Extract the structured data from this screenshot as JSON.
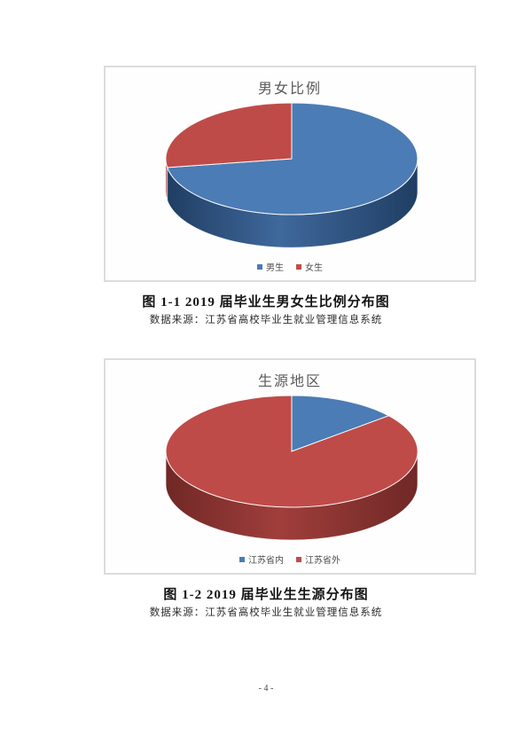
{
  "page": {
    "number_label": "- 4 -"
  },
  "figures": [
    {
      "caption": "图 1-1  2019 届毕业生男女生比例分布图",
      "source": "数据来源：江苏省高校毕业生就业管理信息系统"
    },
    {
      "caption": "图 1-2  2019 届毕业生生源分布图",
      "source": "数据来源：江苏省高校毕业生就业管理信息系统"
    }
  ],
  "chart_data": [
    {
      "type": "pie",
      "style": "3d",
      "title": "男女比例",
      "categories": [
        "男生",
        "女生"
      ],
      "values": [
        72.5,
        27.5
      ],
      "values_note": "percent, estimated from slice angles; chart shows no numeric data labels",
      "colors": [
        "#4b7cb5",
        "#bf4b48"
      ],
      "side_dark": [
        "#203e63",
        "#702826"
      ],
      "side_mid": [
        "#3f689c",
        "#a03e3b"
      ],
      "legend_position": "bottom",
      "start_angle_deg": 0,
      "direction": "clockwise"
    },
    {
      "type": "pie",
      "style": "3d",
      "title": "生源地区",
      "categories": [
        "江苏省内",
        "江苏省外"
      ],
      "values": [
        14,
        86
      ],
      "values_note": "percent, estimated from slice angles; chart shows no numeric data labels",
      "colors": [
        "#4b7cb5",
        "#bf4b48"
      ],
      "side_dark": [
        "#203e63",
        "#702826"
      ],
      "side_mid": [
        "#3f689c",
        "#a03e3b"
      ],
      "legend_position": "bottom",
      "start_angle_deg": 0,
      "direction": "clockwise"
    }
  ]
}
